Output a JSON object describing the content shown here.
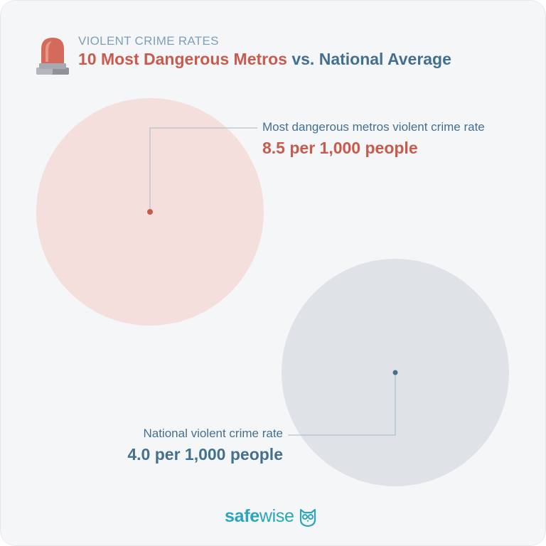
{
  "header": {
    "eyebrow": "VIOLENT CRIME RATES",
    "title_part1": "10 Most Dangerous Metros",
    "title_part2": " vs. National Average"
  },
  "chart_data": {
    "type": "bubble",
    "unit": "per 1,000 people",
    "series": [
      {
        "label": "Most dangerous metros violent crime rate",
        "value": 8.5,
        "display": "8.5 per 1,000 people",
        "color": "#f4dfdd",
        "dot_color": "#c75b4e"
      },
      {
        "label": "National violent crime rate",
        "value": 4.0,
        "display": "4.0 per 1,000 people",
        "color": "#dfe3e8",
        "dot_color": "#44708f"
      }
    ]
  },
  "brand": {
    "name_part1": "safe",
    "name_part2": "wise",
    "icon": "owl-icon",
    "color": "#2aa5b9"
  }
}
